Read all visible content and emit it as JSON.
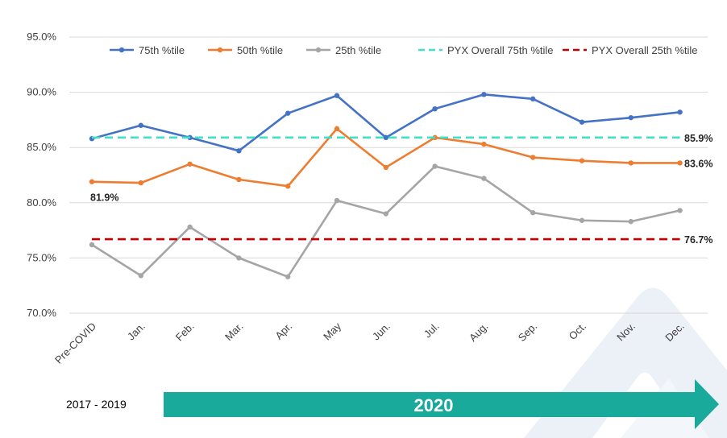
{
  "chart_data": {
    "type": "line",
    "categories": [
      "Pre-COVID",
      "Jan.",
      "Feb.",
      "Mar.",
      "Apr.",
      "May",
      "Jun.",
      "Jul.",
      "Aug.",
      "Sep.",
      "Oct.",
      "Nov.",
      "Dec."
    ],
    "yticks": [
      "95.0%",
      "90.0%",
      "85.0%",
      "80.0%",
      "75.0%",
      "70.0%"
    ],
    "ylim": [
      70,
      95
    ],
    "grid": true,
    "legend_position": "top",
    "series": [
      {
        "name": "75th %tile",
        "color": "#4472c4",
        "style": "solid-markers",
        "values": [
          85.8,
          87.0,
          85.9,
          84.7,
          88.1,
          89.7,
          85.9,
          88.5,
          89.8,
          89.4,
          87.3,
          87.7,
          88.2
        ]
      },
      {
        "name": "50th %tile",
        "color": "#ed7d31",
        "style": "solid-markers",
        "values": [
          81.9,
          81.8,
          83.5,
          82.1,
          81.5,
          86.7,
          83.2,
          85.9,
          85.3,
          84.1,
          83.8,
          83.6,
          83.6
        ]
      },
      {
        "name": "25th %tile",
        "color": "#a5a5a5",
        "style": "solid-markers",
        "values": [
          76.2,
          73.4,
          77.8,
          75.0,
          73.3,
          80.2,
          79.0,
          83.3,
          82.2,
          79.1,
          78.4,
          78.3,
          79.3
        ]
      },
      {
        "name": "PYX Overall 75th %tile",
        "color": "#40e0c8",
        "style": "dashed",
        "value": 85.9
      },
      {
        "name": "PYX Overall 25th %tile",
        "color": "#c00000",
        "style": "dashed",
        "value": 76.7
      }
    ],
    "data_labels": [
      {
        "text": "85.9%",
        "series": "PYX Overall 75th %tile",
        "y": 85.9
      },
      {
        "text": "83.6%",
        "series": "50th %tile",
        "y": 83.6
      },
      {
        "text": "81.9%",
        "series": "50th %tile",
        "y": 81.9,
        "category": "Pre-COVID"
      },
      {
        "text": "76.7%",
        "series": "PYX Overall 25th %tile",
        "y": 76.7
      }
    ]
  },
  "footer": {
    "range_label": "2017 - 2019",
    "year_label": "2020",
    "arrow_color": "#1aaa9b"
  }
}
